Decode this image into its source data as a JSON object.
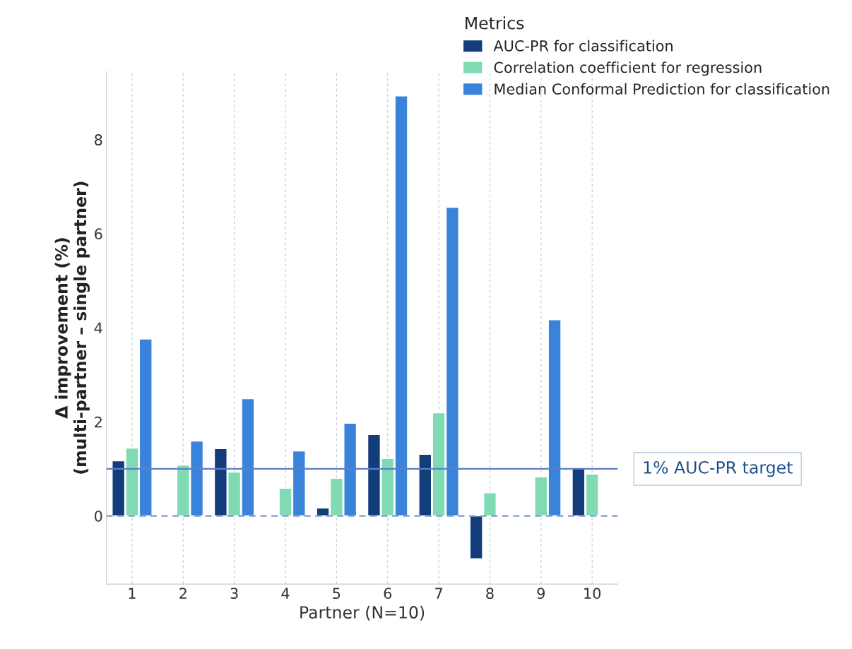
{
  "chart_data": {
    "type": "bar",
    "xlabel": "Partner (N=10)",
    "ylabel": "Δ improvement (%)\n(multi-partner – single partner)",
    "legend_title": "Metrics",
    "categories": [
      "1",
      "2",
      "3",
      "4",
      "5",
      "6",
      "7",
      "8",
      "9",
      "10"
    ],
    "series": [
      {
        "name": "AUC-PR for classification",
        "color": "#123d7a",
        "values": [
          1.17,
          0.02,
          1.43,
          null,
          0.17,
          1.73,
          1.31,
          -0.91,
          null,
          1.0
        ]
      },
      {
        "name": "Correlation coefficient for regression",
        "color": "#80dbb5",
        "values": [
          1.44,
          1.08,
          0.93,
          0.59,
          0.8,
          1.22,
          2.19,
          0.49,
          0.83,
          0.89
        ]
      },
      {
        "name": "Median Conformal Prediction for classification",
        "color": "#3a83db",
        "values": [
          3.76,
          1.59,
          2.49,
          1.38,
          1.97,
          8.93,
          6.56,
          null,
          4.17,
          null
        ]
      }
    ],
    "ylim": [
      -1.45,
      9.45
    ],
    "yticks": [
      0,
      2,
      4,
      6,
      8
    ],
    "grid": "x",
    "legend": "top right",
    "ref_lines": [
      {
        "axis": "y",
        "value": 1,
        "label": "1% AUC-PR target",
        "color": "#5b7fc7",
        "line_style": "solid"
      },
      {
        "axis": "y",
        "value": 0,
        "color": "#7f9bd0",
        "line_style": "dashed"
      }
    ]
  }
}
